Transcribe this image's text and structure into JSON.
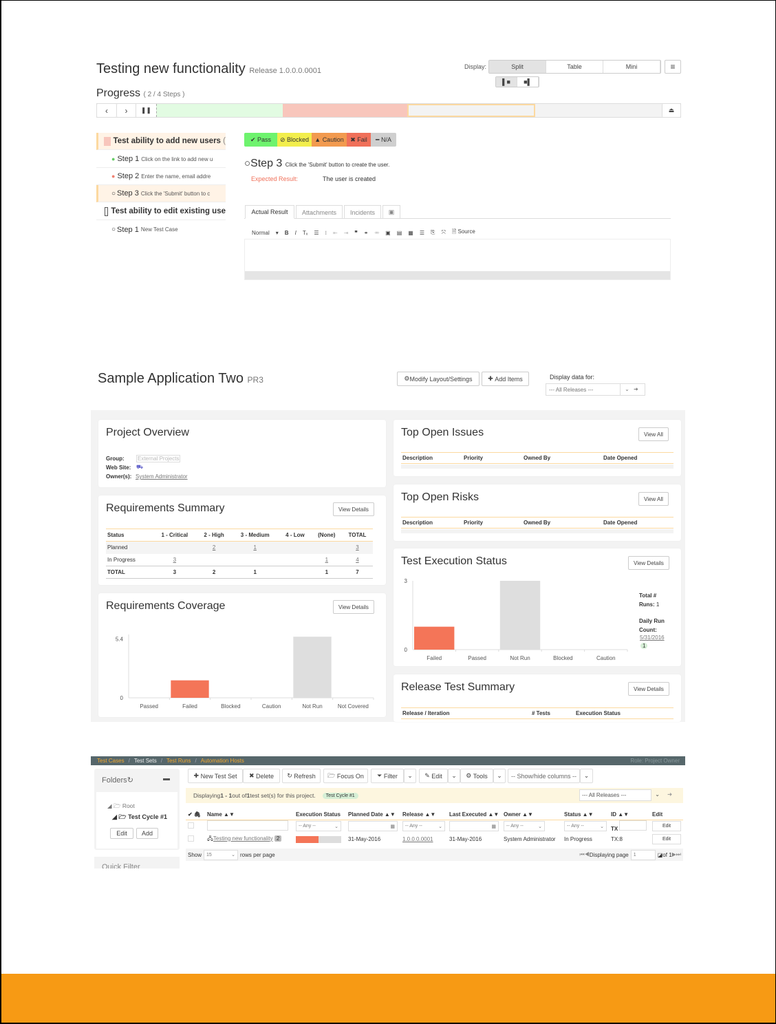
{
  "test_run": {
    "title": "Testing new functionality",
    "release": "Release 1.0.0.0.0001",
    "display_label": "Display:",
    "display_modes": [
      "Split",
      "Table",
      "Mini"
    ],
    "display_selected": "Split",
    "progress_label": "Progress",
    "progress_count": "( 2 / 4 Steps )",
    "progress_segments": [
      {
        "status": "pass",
        "color": "#e2fbe2"
      },
      {
        "status": "fail",
        "color": "#f8c6bc"
      },
      {
        "status": "current",
        "color": "#f3f3f3"
      },
      {
        "status": "not-run",
        "color": "#f3f3f3"
      }
    ],
    "tree": [
      {
        "title": "Test ability to add new users",
        "suffix": "(",
        "type": "case",
        "active": true
      },
      {
        "step": "Step 1",
        "text": "Click on the link to add new u",
        "status": "pass"
      },
      {
        "step": "Step 2",
        "text": "Enter the name, email addre",
        "status": "fail"
      },
      {
        "step": "Step 3",
        "text": "Click the 'Submit' button to c",
        "status": "current"
      },
      {
        "title": "Test ability to edit existing use",
        "type": "case"
      },
      {
        "step": "Step 1",
        "text": "New Test Case",
        "status": "none"
      }
    ],
    "status_buttons": [
      {
        "label": "Pass",
        "color": "#6ef36e"
      },
      {
        "label": "Blocked",
        "color": "#f2ee4c"
      },
      {
        "label": "Caution",
        "color": "#f29a4f"
      },
      {
        "label": "Fail",
        "color": "#f0705a"
      },
      {
        "label": "N/A",
        "color": "#cfcfcf"
      }
    ],
    "current_step": {
      "step": "Step 3",
      "text": "Click the 'Submit' button to create the user.",
      "expected_label": "Expected Result:",
      "expected": "The user is created"
    },
    "tabs": [
      "Actual Result",
      "Attachments",
      "Incidents"
    ],
    "editor": {
      "format": "Normal",
      "source": "Source"
    }
  },
  "dashboard": {
    "title": "Sample Application Two",
    "code": "PR3",
    "modify": "Modify Layout/Settings",
    "add": "Add Items",
    "display_for": "Display data for:",
    "release_select": "--- All Releases ---",
    "overview": {
      "title": "Project Overview",
      "group_label": "Group:",
      "group": "External Projects",
      "web_label": "Web Site:",
      "owner_label": "Owner(s):",
      "owner": "System Administrator"
    },
    "req_summary": {
      "title": "Requirements Summary",
      "button": "View Details",
      "headers": [
        "Status",
        "1 - Critical",
        "2 - High",
        "3 - Medium",
        "4 - Low",
        "(None)",
        "TOTAL"
      ],
      "rows": [
        [
          "Planned",
          "",
          "2",
          "1",
          "",
          "",
          "3"
        ],
        [
          "In Progress",
          "3",
          "",
          "",
          "",
          "1",
          "4"
        ],
        [
          "TOTAL",
          "3",
          "2",
          "1",
          "",
          "1",
          "7"
        ]
      ]
    },
    "issues": {
      "title": "Top Open Issues",
      "button": "View All",
      "headers": [
        "Description",
        "Priority",
        "Owned By",
        "Date Opened"
      ]
    },
    "risks": {
      "title": "Top Open Risks",
      "button": "View All",
      "headers": [
        "Description",
        "Priority",
        "Owned By",
        "Date Opened"
      ]
    },
    "exec_status": {
      "title": "Test Execution Status",
      "button": "View Details",
      "total_label": "Total #",
      "runs_label": "Runs:",
      "runs": "1",
      "daily_label": "Daily Run",
      "count_label": "Count:",
      "date": "5/31/2016",
      "date_count": "1"
    },
    "coverage": {
      "title": "Requirements Coverage",
      "button": "View Details"
    },
    "release_summary": {
      "title": "Release Test Summary",
      "button": "View Details",
      "headers": [
        "Release / Iteration",
        "# Tests",
        "Execution Status"
      ]
    }
  },
  "chart_data": [
    {
      "type": "bar",
      "categories": [
        "Passed",
        "Failed",
        "Blocked",
        "Caution",
        "Not Run",
        "Not Covered"
      ],
      "values": [
        0,
        1.6,
        0,
        0,
        5.6,
        0
      ],
      "yticks": [
        "0",
        "5.4"
      ],
      "ylim": [
        0,
        5.8
      ],
      "colors": [
        "#f4f4f4",
        "#f47558",
        "#f4f4f4",
        "#f4f4f4",
        "#dedede",
        "#f4f4f4"
      ]
    },
    {
      "type": "bar",
      "categories": [
        "Failed",
        "Passed",
        "Not Run",
        "Blocked",
        "Caution"
      ],
      "values": [
        1,
        0,
        3,
        0,
        0
      ],
      "yticks": [
        "0",
        "3"
      ],
      "ylim": [
        0,
        3
      ],
      "colors": [
        "#f47558",
        "#f4f4f4",
        "#dedede",
        "#f4f4f4",
        "#f4f4f4"
      ]
    }
  ],
  "test_sets": {
    "nav": [
      "Test Cases",
      "Test Sets",
      "Test Runs",
      "Automation Hosts"
    ],
    "role": "Role: Project Owner",
    "folders": "Folders",
    "root": "Root",
    "folder": "Test Cycle #1",
    "edit": "Edit",
    "add": "Add",
    "quick_filter": "Quick Filter",
    "toolbar": [
      "New Test Set",
      "Delete",
      "Refresh",
      "Focus On",
      "Filter",
      "Edit",
      "Tools",
      "-- Show/hide columns --"
    ],
    "info_pre": "Displaying ",
    "info_range": "1 - 1",
    "info_mid": " out of ",
    "info_total": "1",
    "info_post": " test set(s) for this project.",
    "tag": "Test Cycle #1",
    "release_select": "--- All Releases ---",
    "headers": [
      "Name",
      "Execution Status",
      "Planned Date",
      "Release",
      "Last Executed",
      "Owner",
      "Status",
      "ID",
      "Edit"
    ],
    "any": "-- Any --",
    "tx": "TX",
    "edit_btn": "Edit",
    "row": {
      "name": "Testing new functionality",
      "count": "2",
      "progress_fail": 0.5,
      "planned": "31-May-2016",
      "release": "1.0.0.0.0001",
      "last": "31-May-2016",
      "owner": "System Administrator",
      "status": "In Progress",
      "id": "TX:8",
      "edit": "Edit"
    },
    "show": "Show",
    "rows": "15",
    "rows_label": "rows per page",
    "page_label": "Displaying page",
    "page": "1",
    "of": "of 1"
  }
}
